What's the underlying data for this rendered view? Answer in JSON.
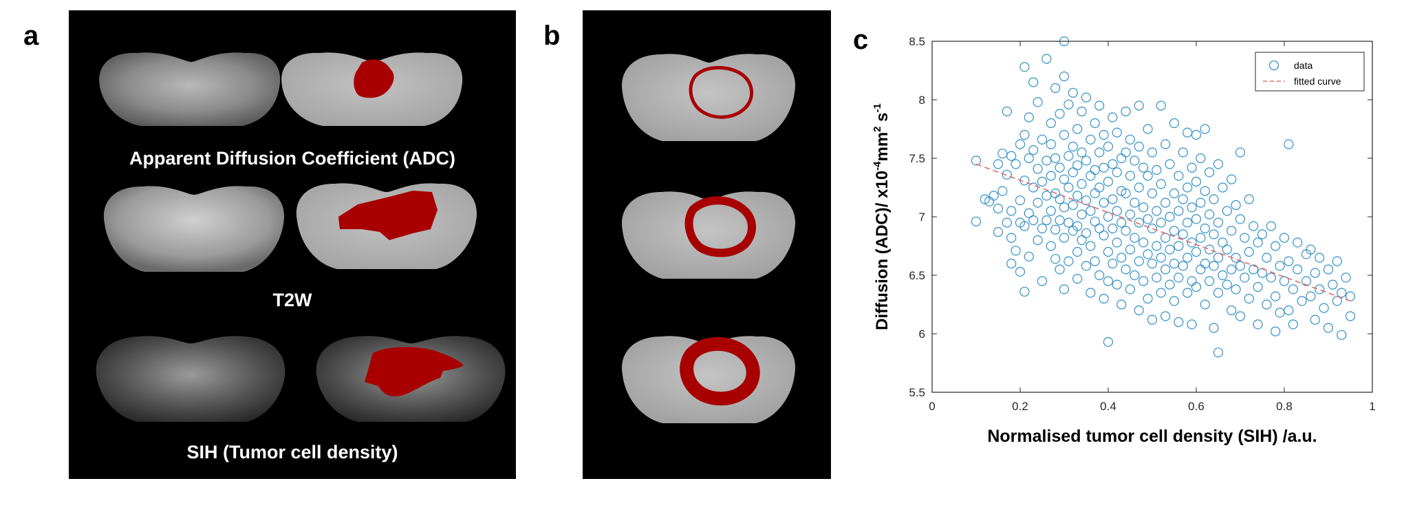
{
  "panels": {
    "a": {
      "letter": "a",
      "labels": [
        "Apparent Diffusion Coefficient (ADC)",
        "T2W",
        "SIH (Tumor cell density)"
      ]
    },
    "b": {
      "letter": "b"
    },
    "c": {
      "letter": "c"
    }
  },
  "colors": {
    "tumor_mask": "#a80000",
    "scatter_marker": "#2f8fc8",
    "fit_line": "#e06a6a"
  },
  "chart_data": {
    "type": "scatter",
    "xlabel": "Normalised tumor cell density (SIH) /a.u.",
    "ylabel_parts": {
      "prefix": "Diffusion (ADC)/ x10",
      "exp1": "-4",
      "mid": "mm",
      "exp2": "2",
      "post": " s",
      "exp3": "-1"
    },
    "xlim": [
      0,
      1
    ],
    "ylim": [
      5.5,
      8.5
    ],
    "xticks": [
      "0",
      "0.2",
      "0.4",
      "0.6",
      "0.8",
      "1"
    ],
    "xtick_values": [
      0,
      0.2,
      0.4,
      0.6,
      0.8,
      1
    ],
    "yticks": [
      "5.5",
      "6",
      "6.5",
      "7",
      "7.5",
      "8",
      "8.5"
    ],
    "ytick_values": [
      5.5,
      6,
      6.5,
      7,
      7.5,
      8,
      8.5
    ],
    "grid": false,
    "legend_position": "top-right",
    "legend": [
      {
        "label": "data",
        "type": "marker"
      },
      {
        "label": "fitted curve",
        "type": "dashed-line"
      }
    ],
    "fit_line": {
      "x": [
        0.1,
        0.95
      ],
      "y": [
        7.45,
        6.28
      ]
    },
    "series": [
      {
        "name": "data",
        "points": [
          [
            0.1,
            7.48
          ],
          [
            0.1,
            6.96
          ],
          [
            0.12,
            7.15
          ],
          [
            0.13,
            7.13
          ],
          [
            0.14,
            7.18
          ],
          [
            0.15,
            7.07
          ],
          [
            0.15,
            6.87
          ],
          [
            0.15,
            7.45
          ],
          [
            0.16,
            7.54
          ],
          [
            0.16,
            7.22
          ],
          [
            0.17,
            7.36
          ],
          [
            0.17,
            6.95
          ],
          [
            0.17,
            7.9
          ],
          [
            0.18,
            7.52
          ],
          [
            0.18,
            7.05
          ],
          [
            0.18,
            6.82
          ],
          [
            0.18,
            6.6
          ],
          [
            0.19,
            7.45
          ],
          [
            0.19,
            6.71
          ],
          [
            0.2,
            7.62
          ],
          [
            0.2,
            7.14
          ],
          [
            0.2,
            6.95
          ],
          [
            0.2,
            6.53
          ],
          [
            0.21,
            7.31
          ],
          [
            0.21,
            7.7
          ],
          [
            0.21,
            8.28
          ],
          [
            0.21,
            6.92
          ],
          [
            0.21,
            6.36
          ],
          [
            0.22,
            7.5
          ],
          [
            0.22,
            7.03
          ],
          [
            0.22,
            7.85
          ],
          [
            0.22,
            6.66
          ],
          [
            0.23,
            7.25
          ],
          [
            0.23,
            7.57
          ],
          [
            0.23,
            6.97
          ],
          [
            0.23,
            8.15
          ],
          [
            0.24,
            7.41
          ],
          [
            0.24,
            7.12
          ],
          [
            0.24,
            6.8
          ],
          [
            0.24,
            7.98
          ],
          [
            0.25,
            7.66
          ],
          [
            0.25,
            7.3
          ],
          [
            0.25,
            6.9
          ],
          [
            0.25,
            6.45
          ],
          [
            0.26,
            8.35
          ],
          [
            0.26,
            7.48
          ],
          [
            0.26,
            7.18
          ],
          [
            0.26,
            6.97
          ],
          [
            0.27,
            7.8
          ],
          [
            0.27,
            7.62
          ],
          [
            0.27,
            7.35
          ],
          [
            0.27,
            7.05
          ],
          [
            0.27,
            6.75
          ],
          [
            0.28,
            8.1
          ],
          [
            0.28,
            7.5
          ],
          [
            0.28,
            7.2
          ],
          [
            0.28,
            6.89
          ],
          [
            0.28,
            6.64
          ],
          [
            0.29,
            7.88
          ],
          [
            0.29,
            7.42
          ],
          [
            0.29,
            7.15
          ],
          [
            0.29,
            6.97
          ],
          [
            0.29,
            6.55
          ],
          [
            0.3,
            8.5
          ],
          [
            0.3,
            8.2
          ],
          [
            0.3,
            7.7
          ],
          [
            0.3,
            7.32
          ],
          [
            0.3,
            7.08
          ],
          [
            0.3,
            6.82
          ],
          [
            0.3,
            6.38
          ],
          [
            0.31,
            7.96
          ],
          [
            0.31,
            7.52
          ],
          [
            0.31,
            7.25
          ],
          [
            0.31,
            6.95
          ],
          [
            0.31,
            6.62
          ],
          [
            0.32,
            8.06
          ],
          [
            0.32,
            7.6
          ],
          [
            0.32,
            7.38
          ],
          [
            0.32,
            7.1
          ],
          [
            0.32,
            6.88
          ],
          [
            0.33,
            7.75
          ],
          [
            0.33,
            7.44
          ],
          [
            0.33,
            7.18
          ],
          [
            0.33,
            6.92
          ],
          [
            0.33,
            6.7
          ],
          [
            0.33,
            6.47
          ],
          [
            0.34,
            7.9
          ],
          [
            0.34,
            7.55
          ],
          [
            0.34,
            7.28
          ],
          [
            0.34,
            7.02
          ],
          [
            0.34,
            6.8
          ],
          [
            0.35,
            8.02
          ],
          [
            0.35,
            7.48
          ],
          [
            0.35,
            7.14
          ],
          [
            0.35,
            6.86
          ],
          [
            0.35,
            6.58
          ],
          [
            0.36,
            7.66
          ],
          [
            0.36,
            7.35
          ],
          [
            0.36,
            7.05
          ],
          [
            0.36,
            6.75
          ],
          [
            0.36,
            6.35
          ],
          [
            0.37,
            7.8
          ],
          [
            0.37,
            7.4
          ],
          [
            0.37,
            7.2
          ],
          [
            0.37,
            6.96
          ],
          [
            0.37,
            6.62
          ],
          [
            0.38,
            7.95
          ],
          [
            0.38,
            7.55
          ],
          [
            0.38,
            7.25
          ],
          [
            0.38,
            6.9
          ],
          [
            0.38,
            6.5
          ],
          [
            0.39,
            7.7
          ],
          [
            0.39,
            7.42
          ],
          [
            0.39,
            7.12
          ],
          [
            0.39,
            6.84
          ],
          [
            0.39,
            6.3
          ],
          [
            0.4,
            7.6
          ],
          [
            0.4,
            7.3
          ],
          [
            0.4,
            7.0
          ],
          [
            0.4,
            6.7
          ],
          [
            0.4,
            6.45
          ],
          [
            0.4,
            5.93
          ],
          [
            0.41,
            7.85
          ],
          [
            0.41,
            7.45
          ],
          [
            0.41,
            7.15
          ],
          [
            0.41,
            6.9
          ],
          [
            0.41,
            6.6
          ],
          [
            0.42,
            7.72
          ],
          [
            0.42,
            7.38
          ],
          [
            0.42,
            7.05
          ],
          [
            0.42,
            6.78
          ],
          [
            0.42,
            6.42
          ],
          [
            0.43,
            7.5
          ],
          [
            0.43,
            7.22
          ],
          [
            0.43,
            6.95
          ],
          [
            0.43,
            6.65
          ],
          [
            0.43,
            6.25
          ],
          [
            0.44,
            7.9
          ],
          [
            0.44,
            7.55
          ],
          [
            0.44,
            7.2
          ],
          [
            0.44,
            6.88
          ],
          [
            0.44,
            6.55
          ],
          [
            0.45,
            7.66
          ],
          [
            0.45,
            7.35
          ],
          [
            0.45,
            7.02
          ],
          [
            0.45,
            6.72
          ],
          [
            0.45,
            6.38
          ],
          [
            0.46,
            7.48
          ],
          [
            0.46,
            7.12
          ],
          [
            0.46,
            6.82
          ],
          [
            0.46,
            6.5
          ],
          [
            0.47,
            7.95
          ],
          [
            0.47,
            7.6
          ],
          [
            0.47,
            7.25
          ],
          [
            0.47,
            6.95
          ],
          [
            0.47,
            6.62
          ],
          [
            0.47,
            6.2
          ],
          [
            0.48,
            7.42
          ],
          [
            0.48,
            7.08
          ],
          [
            0.48,
            6.78
          ],
          [
            0.48,
            6.45
          ],
          [
            0.49,
            7.75
          ],
          [
            0.49,
            7.35
          ],
          [
            0.49,
            6.98
          ],
          [
            0.49,
            6.68
          ],
          [
            0.49,
            6.3
          ],
          [
            0.5,
            7.55
          ],
          [
            0.5,
            7.2
          ],
          [
            0.5,
            6.9
          ],
          [
            0.5,
            6.6
          ],
          [
            0.5,
            6.12
          ],
          [
            0.51,
            7.4
          ],
          [
            0.51,
            7.05
          ],
          [
            0.51,
            6.75
          ],
          [
            0.51,
            6.48
          ],
          [
            0.52,
            7.95
          ],
          [
            0.52,
            7.28
          ],
          [
            0.52,
            6.95
          ],
          [
            0.52,
            6.65
          ],
          [
            0.52,
            6.35
          ],
          [
            0.53,
            7.62
          ],
          [
            0.53,
            7.12
          ],
          [
            0.53,
            6.82
          ],
          [
            0.53,
            6.55
          ],
          [
            0.53,
            6.15
          ],
          [
            0.54,
            7.45
          ],
          [
            0.54,
            7.0
          ],
          [
            0.54,
            6.72
          ],
          [
            0.54,
            6.42
          ],
          [
            0.55,
            7.8
          ],
          [
            0.55,
            7.2
          ],
          [
            0.55,
            6.88
          ],
          [
            0.55,
            6.6
          ],
          [
            0.55,
            6.28
          ],
          [
            0.56,
            7.35
          ],
          [
            0.56,
            7.05
          ],
          [
            0.56,
            6.75
          ],
          [
            0.56,
            6.48
          ],
          [
            0.56,
            6.1
          ],
          [
            0.57,
            7.55
          ],
          [
            0.57,
            7.15
          ],
          [
            0.57,
            6.85
          ],
          [
            0.57,
            6.58
          ],
          [
            0.58,
            7.72
          ],
          [
            0.58,
            7.25
          ],
          [
            0.58,
            6.95
          ],
          [
            0.58,
            6.65
          ],
          [
            0.58,
            6.35
          ],
          [
            0.59,
            7.42
          ],
          [
            0.59,
            7.08
          ],
          [
            0.59,
            6.78
          ],
          [
            0.59,
            6.45
          ],
          [
            0.59,
            6.08
          ],
          [
            0.6,
            7.7
          ],
          [
            0.6,
            7.3
          ],
          [
            0.6,
            6.98
          ],
          [
            0.6,
            6.7
          ],
          [
            0.6,
            6.4
          ],
          [
            0.61,
            7.5
          ],
          [
            0.61,
            7.12
          ],
          [
            0.61,
            6.82
          ],
          [
            0.61,
            6.55
          ],
          [
            0.62,
            7.75
          ],
          [
            0.62,
            7.22
          ],
          [
            0.62,
            6.9
          ],
          [
            0.62,
            6.6
          ],
          [
            0.62,
            6.25
          ],
          [
            0.63,
            7.38
          ],
          [
            0.63,
            7.02
          ],
          [
            0.63,
            6.72
          ],
          [
            0.63,
            6.45
          ],
          [
            0.64,
            7.15
          ],
          [
            0.64,
            6.85
          ],
          [
            0.64,
            6.58
          ],
          [
            0.64,
            6.05
          ],
          [
            0.65,
            5.84
          ],
          [
            0.65,
            7.45
          ],
          [
            0.65,
            6.95
          ],
          [
            0.65,
            6.65
          ],
          [
            0.65,
            6.35
          ],
          [
            0.66,
            7.25
          ],
          [
            0.66,
            6.78
          ],
          [
            0.66,
            6.5
          ],
          [
            0.67,
            7.05
          ],
          [
            0.67,
            6.72
          ],
          [
            0.67,
            6.42
          ],
          [
            0.68,
            7.32
          ],
          [
            0.68,
            6.88
          ],
          [
            0.68,
            6.55
          ],
          [
            0.68,
            6.2
          ],
          [
            0.69,
            7.1
          ],
          [
            0.69,
            6.65
          ],
          [
            0.69,
            6.38
          ],
          [
            0.7,
            7.55
          ],
          [
            0.7,
            6.98
          ],
          [
            0.7,
            6.58
          ],
          [
            0.7,
            6.15
          ],
          [
            0.71,
            6.82
          ],
          [
            0.71,
            6.48
          ],
          [
            0.72,
            7.15
          ],
          [
            0.72,
            6.7
          ],
          [
            0.72,
            6.3
          ],
          [
            0.73,
            6.92
          ],
          [
            0.73,
            6.55
          ],
          [
            0.74,
            6.78
          ],
          [
            0.74,
            6.4
          ],
          [
            0.74,
            6.08
          ],
          [
            0.75,
            6.85
          ],
          [
            0.75,
            6.52
          ],
          [
            0.76,
            6.65
          ],
          [
            0.76,
            6.25
          ],
          [
            0.77,
            6.92
          ],
          [
            0.77,
            6.48
          ],
          [
            0.78,
            6.75
          ],
          [
            0.78,
            6.32
          ],
          [
            0.78,
            6.02
          ],
          [
            0.79,
            6.58
          ],
          [
            0.79,
            6.18
          ],
          [
            0.8,
            6.82
          ],
          [
            0.8,
            6.45
          ],
          [
            0.81,
            7.62
          ],
          [
            0.81,
            6.62
          ],
          [
            0.81,
            6.2
          ],
          [
            0.82,
            6.38
          ],
          [
            0.82,
            6.08
          ],
          [
            0.83,
            6.78
          ],
          [
            0.83,
            6.55
          ],
          [
            0.84,
            6.28
          ],
          [
            0.85,
            6.68
          ],
          [
            0.85,
            6.45
          ],
          [
            0.86,
            6.72
          ],
          [
            0.86,
            6.32
          ],
          [
            0.87,
            6.52
          ],
          [
            0.87,
            6.12
          ],
          [
            0.88,
            6.65
          ],
          [
            0.88,
            6.38
          ],
          [
            0.89,
            6.22
          ],
          [
            0.9,
            6.55
          ],
          [
            0.9,
            6.05
          ],
          [
            0.91,
            6.42
          ],
          [
            0.92,
            6.62
          ],
          [
            0.92,
            6.28
          ],
          [
            0.93,
            6.35
          ],
          [
            0.93,
            5.99
          ],
          [
            0.94,
            6.48
          ],
          [
            0.95,
            6.32
          ],
          [
            0.95,
            6.15
          ]
        ]
      }
    ]
  }
}
